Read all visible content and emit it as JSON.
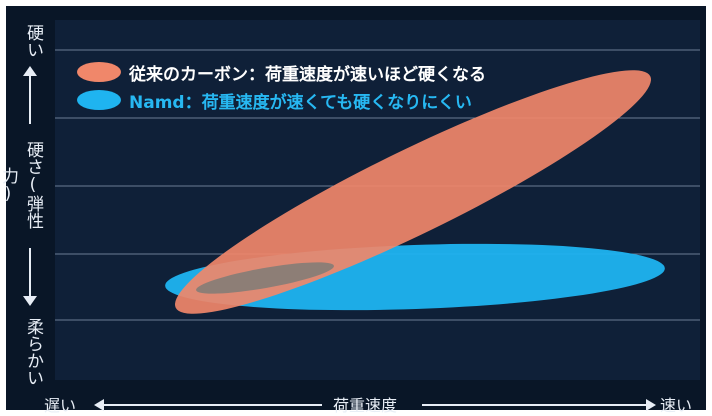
{
  "chart_data": {
    "type": "scatter",
    "title": "",
    "xlabel": "荷重速度",
    "ylabel": "硬さ(弾性力)",
    "x_low_label": "遅い",
    "x_high_label": "速い",
    "y_high_label": "硬い",
    "y_low_label": "柔らかい",
    "grid": true,
    "legend_position": "top-left",
    "series": [
      {
        "name": "従来のカーボン：荷重速度が速いほど硬くなる",
        "color": "#f0876a",
        "shape": "ellipse-rising"
      },
      {
        "name": "Namd：荷重速度が速くても硬くなりにくい",
        "color": "#1fb4f0",
        "shape": "ellipse-flat"
      }
    ]
  }
}
